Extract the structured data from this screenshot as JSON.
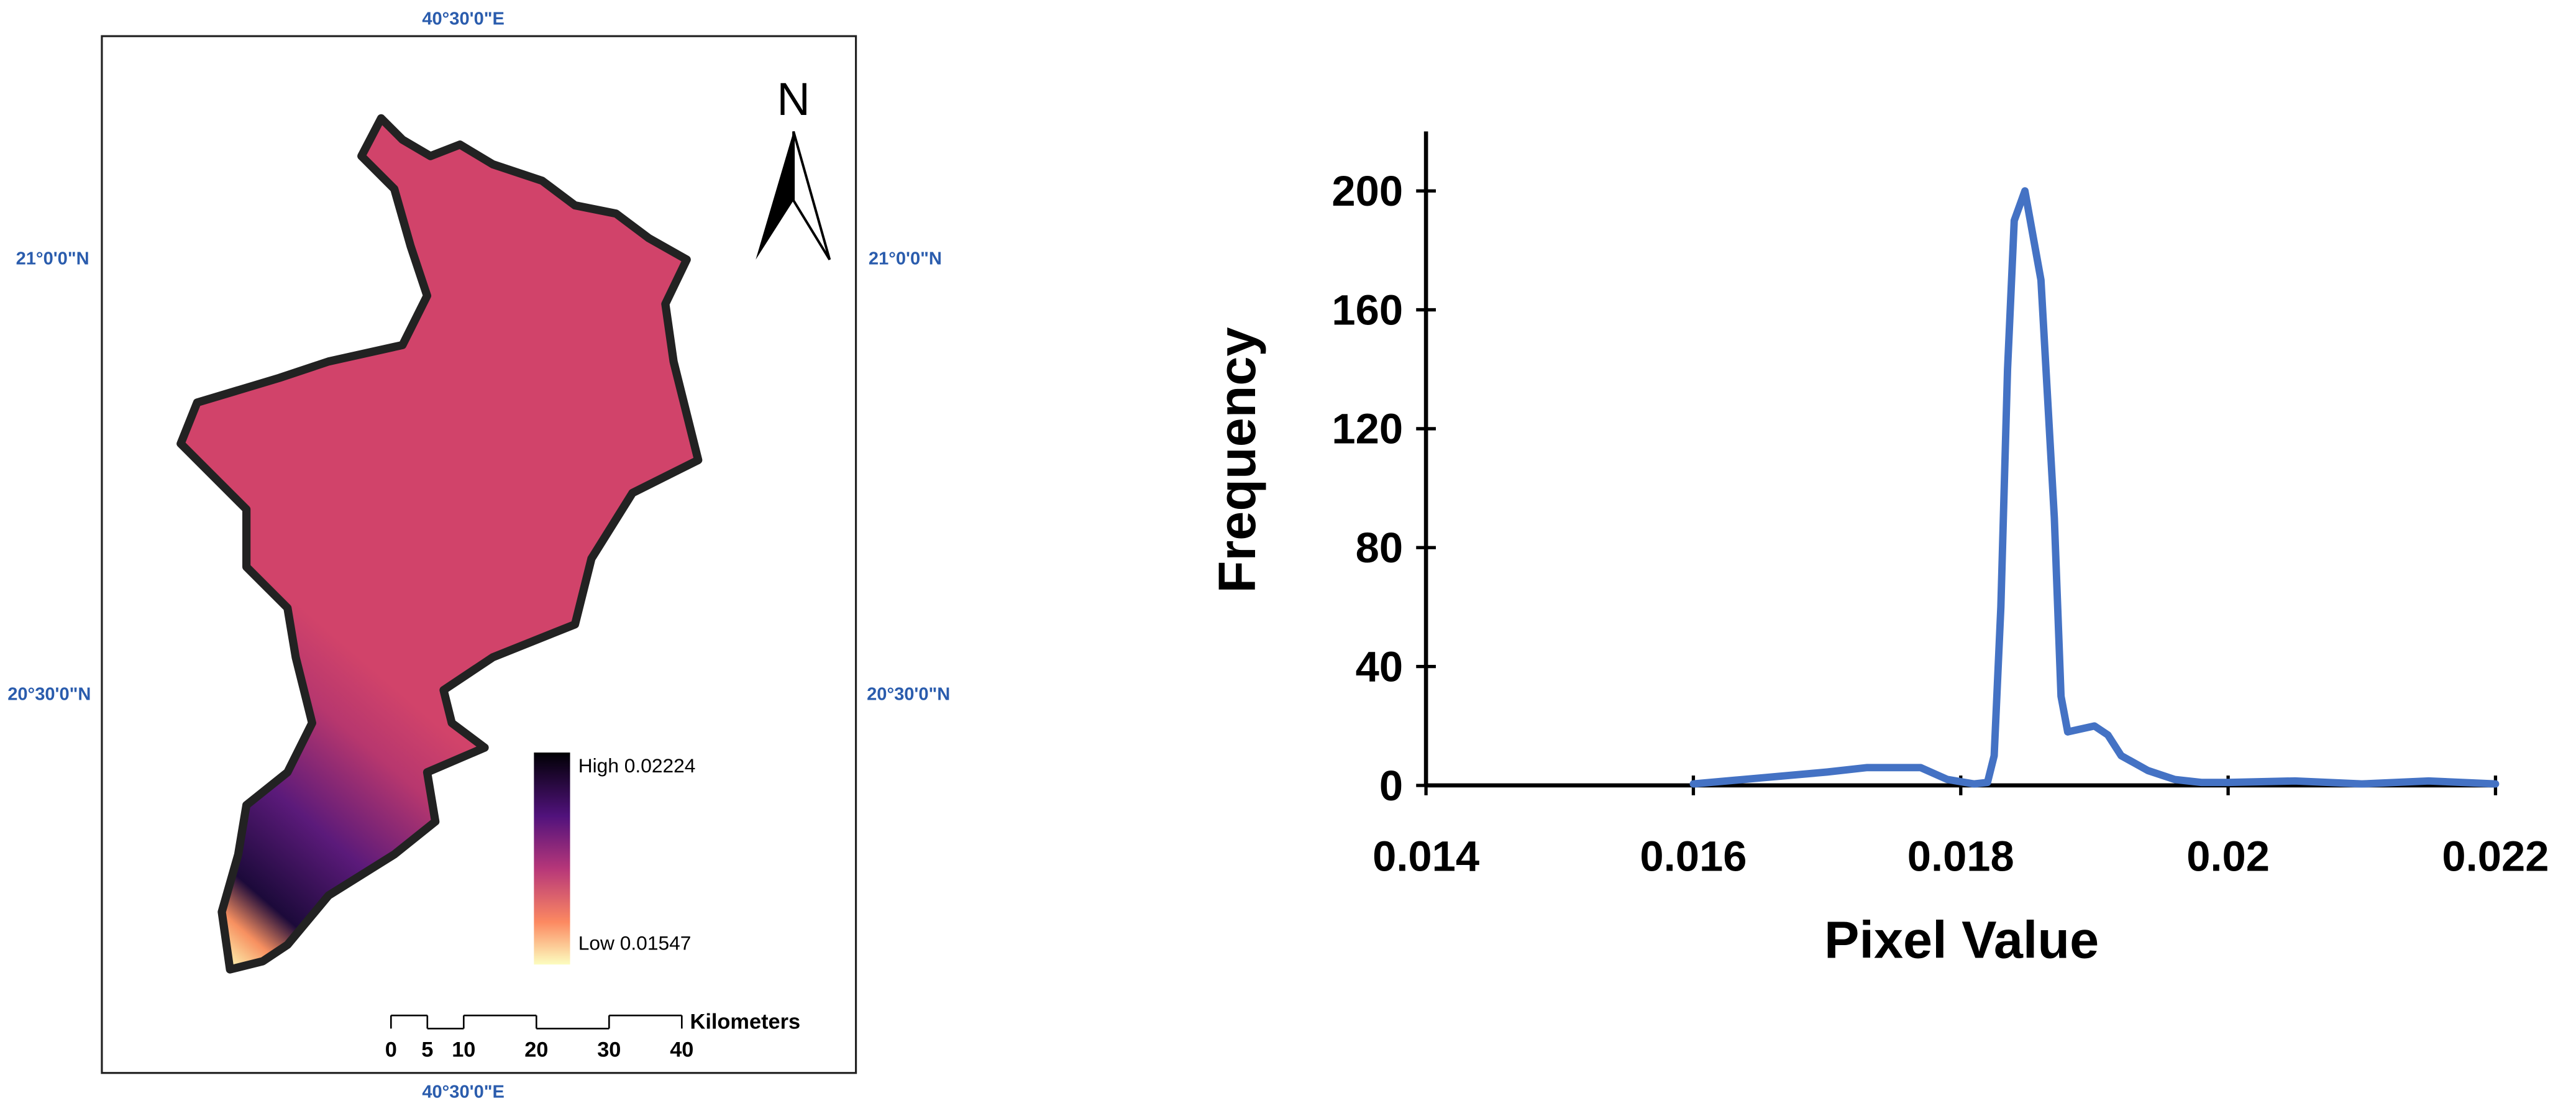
{
  "map": {
    "coord_labels": {
      "top": "40°30'0\"E",
      "bottom": "40°30'0\"E",
      "left_upper": "21°0'0\"N",
      "right_upper": "21°0'0\"N",
      "left_lower": "20°30'0\"N",
      "right_lower": "20°30'0\"N"
    },
    "north": "N",
    "legend": {
      "high": "High 0.02224",
      "low": "Low 0.01547"
    },
    "scale_bar": {
      "ticks": [
        0,
        5,
        10,
        20,
        30,
        40
      ],
      "unit": "Kilometers"
    }
  },
  "chart_data": {
    "type": "line",
    "xlabel": "Pixel Value",
    "ylabel": "Frequency",
    "color": "#4472c4",
    "x": [
      0.016,
      0.0165,
      0.017,
      0.0173,
      0.0177,
      0.0179,
      0.0181,
      0.0182,
      0.01825,
      0.0183,
      0.01835,
      0.0184,
      0.01848,
      0.0186,
      0.0187,
      0.01875,
      0.0188,
      0.0189,
      0.019,
      0.0191,
      0.0192,
      0.0194,
      0.0196,
      0.0198,
      0.02,
      0.0205,
      0.021,
      0.0215,
      0.022
    ],
    "values": [
      0.5,
      2.5,
      4.5,
      6,
      6,
      2,
      0.5,
      1,
      10,
      60,
      140,
      190,
      200,
      170,
      90,
      30,
      18,
      19,
      20,
      17,
      10,
      5,
      2,
      1,
      1,
      1.5,
      0.5,
      1.5,
      0.5
    ],
    "xlim": [
      0.014,
      0.022
    ],
    "xticks": [
      0.014,
      0.016,
      0.018,
      0.02,
      0.022
    ],
    "ylim": [
      0,
      220
    ],
    "yticks": [
      0,
      40,
      80,
      120,
      160,
      200
    ]
  }
}
